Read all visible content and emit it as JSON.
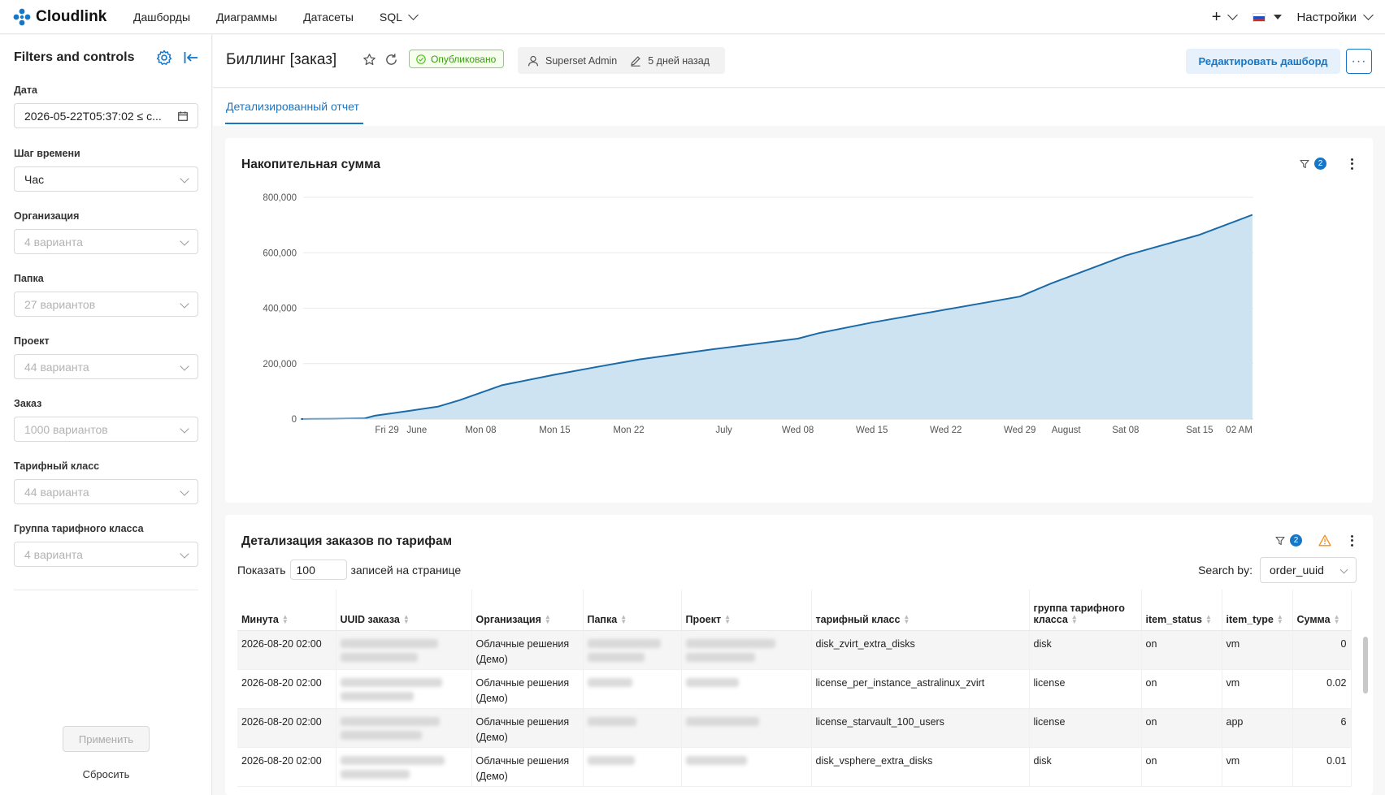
{
  "nav": {
    "brand": "Cloudlink",
    "items": [
      "Дашборды",
      "Диаграммы",
      "Датасеты",
      "SQL"
    ],
    "settings": "Настройки",
    "plus": "+"
  },
  "sidebar": {
    "title": "Filters and controls",
    "filters": [
      {
        "label": "Дата",
        "value": "2026-05-22T05:37:02 ≤ c...",
        "placeholder": false
      },
      {
        "label": "Шаг времени",
        "value": "Час",
        "placeholder": false
      },
      {
        "label": "Организация",
        "value": "4 варианта",
        "placeholder": true
      },
      {
        "label": "Папка",
        "value": "27 вариантов",
        "placeholder": true
      },
      {
        "label": "Проект",
        "value": "44 варианта",
        "placeholder": true
      },
      {
        "label": "Заказ",
        "value": "1000 вариантов",
        "placeholder": true
      },
      {
        "label": "Тарифный класс",
        "value": "44 варианта",
        "placeholder": true
      },
      {
        "label": "Группа тарифного класса",
        "value": "4 варианта",
        "placeholder": true
      }
    ],
    "apply": "Применить",
    "reset": "Сбросить"
  },
  "header": {
    "title": "Биллинг [заказ]",
    "status": "Опубликовано",
    "owner": "Superset Admin",
    "modified": "5 дней назад",
    "edit": "Редактировать дашборд",
    "more": "···"
  },
  "tabs": [
    {
      "label": "Детализированный отчет",
      "active": true
    }
  ],
  "chart_panel": {
    "title": "Накопительная сумма",
    "filter_count": "2"
  },
  "chart_data": {
    "type": "area",
    "title": "Накопительная сумма",
    "xlabel": "",
    "ylabel": "",
    "ylim": [
      0,
      800000
    ],
    "yticks": [
      "0",
      "200,000",
      "400,000",
      "600,000",
      "800,000"
    ],
    "xticks": [
      "Fri 29",
      "June",
      "Mon 08",
      "Mon 15",
      "Mon 22",
      "July",
      "Wed 08",
      "Wed 15",
      "Wed 22",
      "Wed 29",
      "August",
      "Sat 08",
      "Sat 15",
      "02 AM"
    ],
    "x": [
      "2026-05-22",
      "2026-05-25",
      "2026-05-28",
      "2026-05-29",
      "2026-06-01",
      "2026-06-04",
      "2026-06-06",
      "2026-06-10",
      "2026-06-15",
      "2026-06-19",
      "2026-06-23",
      "2026-06-30",
      "2026-07-08",
      "2026-07-10",
      "2026-07-15",
      "2026-07-22",
      "2026-07-29",
      "2026-08-01",
      "2026-08-08",
      "2026-08-15",
      "2026-08-20"
    ],
    "series": [
      {
        "values": [
          0,
          1000,
          2000,
          12000,
          28000,
          45000,
          68000,
          122000,
          160000,
          188000,
          215000,
          252000,
          290000,
          310000,
          348000,
          395000,
          442000,
          490000,
          590000,
          665000,
          737000
        ]
      }
    ]
  },
  "table_panel": {
    "title": "Детализация заказов по тарифам",
    "filter_count": "2",
    "show_label": "Показать",
    "page_size": "100",
    "per_page_label": "записей на странице",
    "search_by_label": "Search by:",
    "search_by_value": "order_uuid",
    "columns": [
      "Минута",
      "UUID заказа",
      "Организация",
      "Папка",
      "Проект",
      "тарифный класс",
      "группа тарифного класса",
      "item_status",
      "item_type",
      "Сумма"
    ],
    "rows": [
      {
        "minute": "2026-08-20 02:00",
        "org": "Облачные решения (Демо)",
        "tariff": "disk_zvirt_extra_disks",
        "group": "disk",
        "status": "on",
        "type": "vm",
        "sum": "0"
      },
      {
        "minute": "2026-08-20 02:00",
        "org": "Облачные решения (Демо)",
        "tariff": "license_per_instance_astralinux_zvirt",
        "group": "license",
        "status": "on",
        "type": "vm",
        "sum": "0.02"
      },
      {
        "minute": "2026-08-20 02:00",
        "org": "Облачные решения (Демо)",
        "tariff": "license_starvault_100_users",
        "group": "license",
        "status": "on",
        "type": "app",
        "sum": "6"
      },
      {
        "minute": "2026-08-20 02:00",
        "org": "Облачные решения (Демо)",
        "tariff": "disk_vsphere_extra_disks",
        "group": "disk",
        "status": "on",
        "type": "vm",
        "sum": "0.01"
      }
    ]
  },
  "colors": {
    "accent": "#1677c8",
    "area_fill": "#cde3f1",
    "line": "#1a6aa8",
    "published": "#389e0d"
  }
}
